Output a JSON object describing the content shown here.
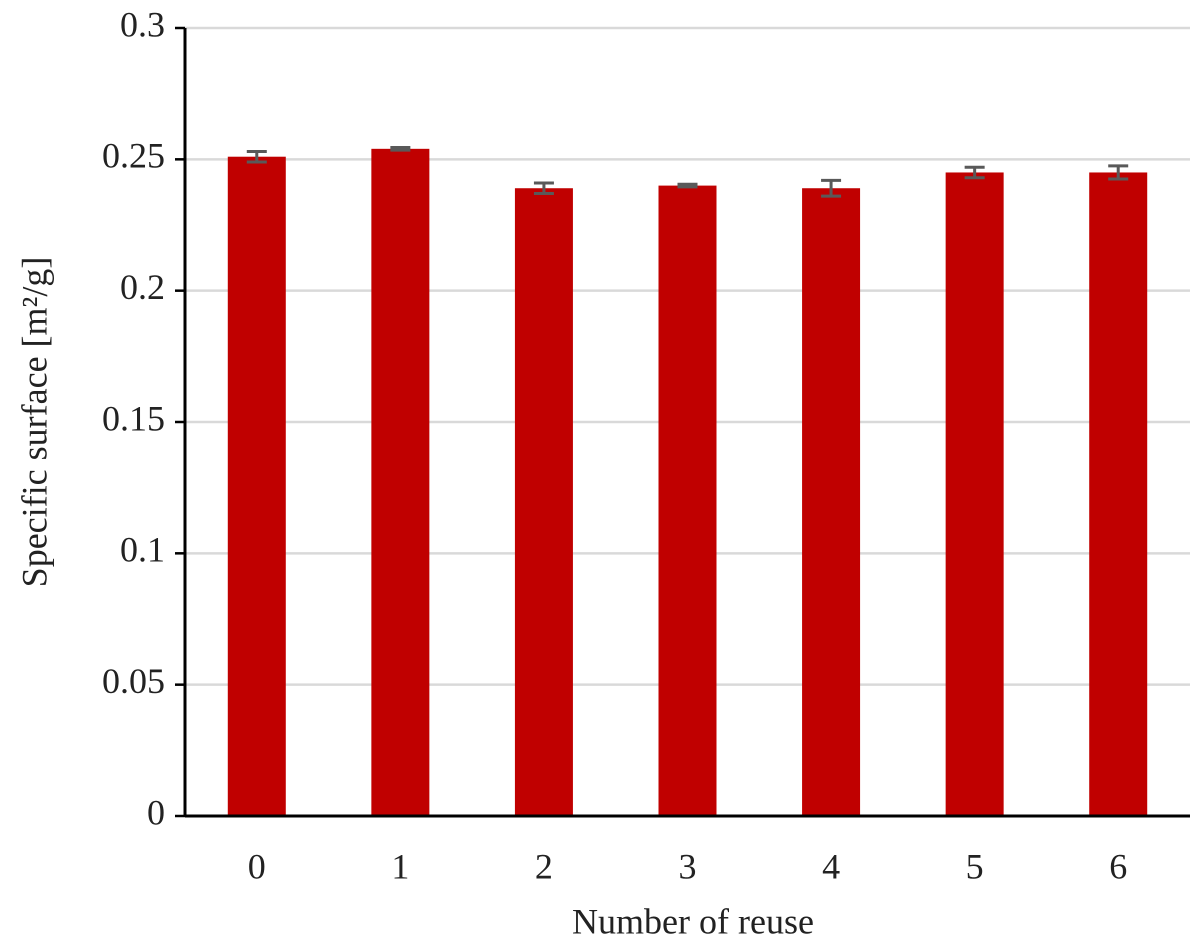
{
  "chart_data": {
    "type": "bar",
    "x_label": "Number of reuse",
    "y_label": "Specific surface [m²/g]",
    "categories": [
      "0",
      "1",
      "2",
      "3",
      "4",
      "5",
      "6"
    ],
    "values": [
      0.251,
      0.254,
      0.239,
      0.24,
      0.239,
      0.245,
      0.245
    ],
    "errors": [
      0.002,
      0.0005,
      0.002,
      0.0005,
      0.003,
      0.002,
      0.0025
    ],
    "color": "#c00000",
    "error_color": "#595959",
    "ylim": [
      0,
      0.3
    ],
    "yticks": [
      0,
      0.05,
      0.1,
      0.15,
      0.2,
      0.25,
      0.3
    ],
    "grid": true
  }
}
